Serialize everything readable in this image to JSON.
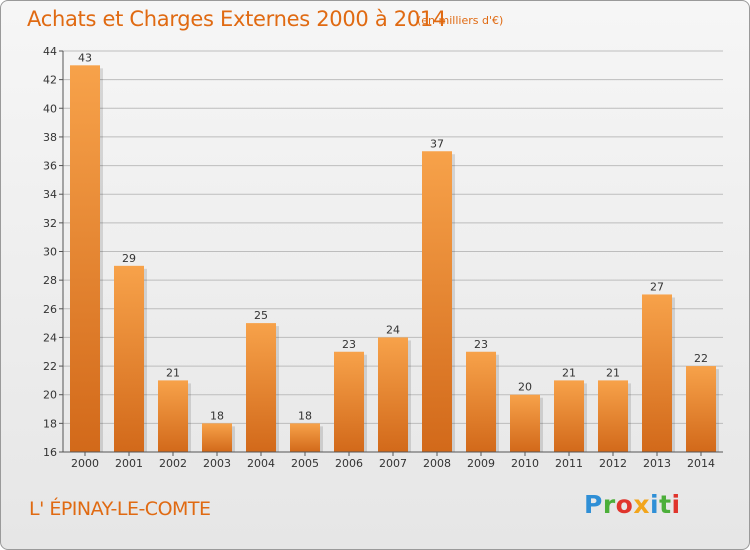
{
  "header": {
    "title": "Achats et Charges Externes 2000 à 2014",
    "unit": "(en milliers d'€)"
  },
  "footer": {
    "commune": "L' ÉPINAY-LE-COMTE",
    "logo_letters": [
      {
        "ch": "P",
        "color": "#2f8fd6"
      },
      {
        "ch": "r",
        "color": "#4caf3a"
      },
      {
        "ch": "o",
        "color": "#e0342c"
      },
      {
        "ch": "x",
        "color": "#f2a51c"
      },
      {
        "ch": "i",
        "color": "#2f8fd6"
      },
      {
        "ch": "t",
        "color": "#4caf3a"
      },
      {
        "ch": "i",
        "color": "#e0342c"
      }
    ]
  },
  "colors": {
    "title": "#e06a12",
    "bar_top": "#f7a24a",
    "bar_bottom": "#d2691a",
    "grid": "#bdbdbd"
  },
  "chart_data": {
    "type": "bar",
    "title": "Achats et Charges Externes 2000 à 2014",
    "xlabel": "",
    "ylabel": "",
    "categories": [
      "2000",
      "2001",
      "2002",
      "2003",
      "2004",
      "2005",
      "2006",
      "2007",
      "2008",
      "2009",
      "2010",
      "2011",
      "2012",
      "2013",
      "2014"
    ],
    "values": [
      43,
      29,
      21,
      18,
      25,
      18,
      23,
      24,
      37,
      23,
      20,
      21,
      21,
      27,
      22
    ],
    "ylim": [
      16,
      44
    ],
    "yticks": [
      16,
      18,
      20,
      22,
      24,
      26,
      28,
      30,
      32,
      34,
      36,
      38,
      40,
      42,
      44
    ],
    "grid": true,
    "data_labels": true
  }
}
